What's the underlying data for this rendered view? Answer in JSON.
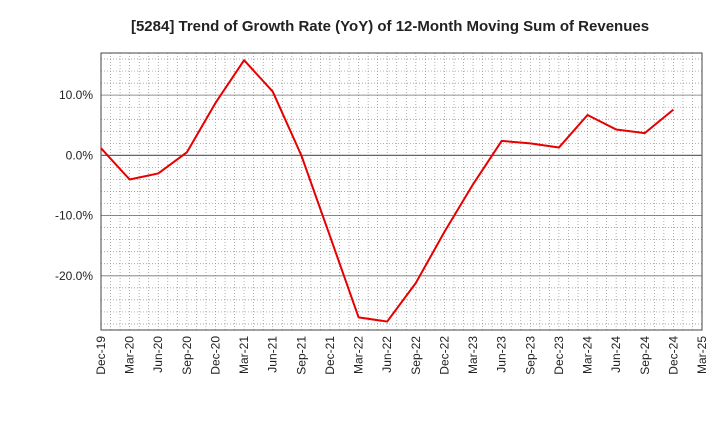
{
  "chart_data": {
    "type": "line",
    "title": "[5284]  Trend of Growth Rate (YoY) of 12-Month Moving Sum of Revenues",
    "xlabel": "",
    "ylabel": "",
    "x_ticks": [
      "Dec-19",
      "Mar-20",
      "Jun-20",
      "Sep-20",
      "Dec-20",
      "Mar-21",
      "Jun-21",
      "Sep-21",
      "Dec-21",
      "Mar-22",
      "Jun-22",
      "Sep-22",
      "Dec-22",
      "Mar-23",
      "Jun-23",
      "Sep-23",
      "Dec-23",
      "Mar-24",
      "Jun-24",
      "Sep-24",
      "Dec-24",
      "Mar-25"
    ],
    "y_ticks": [
      {
        "value": 10,
        "label": "10.0%"
      },
      {
        "value": 0,
        "label": "0.0%"
      },
      {
        "value": -10,
        "label": "-10.0%"
      },
      {
        "value": -20,
        "label": "-20.0%"
      }
    ],
    "ylim": [
      -29,
      17
    ],
    "grid": true,
    "color": "#e60000",
    "series": [
      {
        "x": [
          "Dec-19",
          "Mar-20",
          "Jun-20",
          "Sep-20",
          "Dec-20",
          "Mar-21",
          "Jun-21",
          "Sep-21",
          "Dec-21",
          "Mar-22",
          "Jun-22",
          "Sep-22",
          "Dec-22",
          "Mar-23",
          "Jun-23",
          "Sep-23",
          "Dec-23",
          "Mar-24",
          "Jun-24",
          "Sep-24",
          "Dec-24"
        ],
        "values": [
          1.2,
          -4.0,
          -3.0,
          0.5,
          8.7,
          15.8,
          10.6,
          0.0,
          -13.4,
          -26.9,
          -27.6,
          -21.2,
          -12.7,
          -4.8,
          2.4,
          2.0,
          1.3,
          6.7,
          4.3,
          3.7,
          7.6
        ]
      }
    ]
  }
}
